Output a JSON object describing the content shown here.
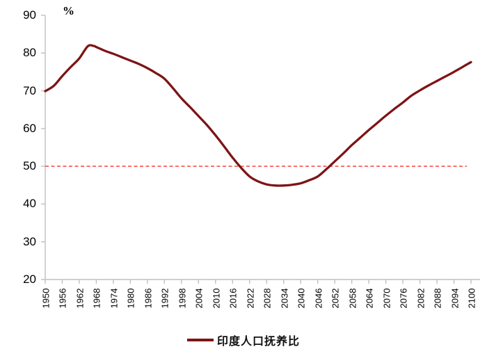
{
  "chart": {
    "unit_label": "%",
    "colors": {
      "series_line": "#7d1416",
      "reference_line": "#fb5b5b",
      "axis": "#bfbfbf",
      "text": "#000000"
    }
  },
  "chart_data": {
    "type": "line",
    "title": "",
    "xlabel": "",
    "ylabel": "%",
    "ylim": [
      20,
      90
    ],
    "yticks": [
      20,
      30,
      40,
      50,
      60,
      70,
      80,
      90
    ],
    "grid": false,
    "legend_position": "bottom",
    "categories": [
      "1950",
      "1956",
      "1962",
      "1968",
      "1974",
      "1980",
      "1986",
      "1992",
      "1998",
      "2004",
      "2010",
      "2016",
      "2022",
      "2028",
      "2034",
      "2040",
      "2046",
      "2052",
      "2058",
      "2064",
      "2070",
      "2076",
      "2082",
      "2088",
      "2094",
      "2100"
    ],
    "series": [
      {
        "name": "印度人口抚养比",
        "color": "#7d1416",
        "values": [
          69.9,
          73.9,
          78.6,
          81.6,
          79.8,
          78.0,
          76.0,
          73.2,
          68.0,
          63.3,
          58.2,
          52.3,
          47.3,
          45.2,
          44.9,
          45.5,
          47.3,
          51.3,
          55.6,
          59.6,
          63.4,
          66.9,
          70.1,
          72.6,
          75.0,
          77.6
        ]
      }
    ],
    "curve_points": [
      [
        1950,
        69.9
      ],
      [
        1953,
        71.3
      ],
      [
        1956,
        73.9
      ],
      [
        1959,
        76.3
      ],
      [
        1962,
        78.6
      ],
      [
        1965,
        81.8
      ],
      [
        1967,
        81.9
      ],
      [
        1968,
        81.6
      ],
      [
        1971,
        80.6
      ],
      [
        1974,
        79.8
      ],
      [
        1977,
        78.9
      ],
      [
        1980,
        78.0
      ],
      [
        1983,
        77.1
      ],
      [
        1986,
        76.0
      ],
      [
        1989,
        74.7
      ],
      [
        1992,
        73.2
      ],
      [
        1995,
        70.7
      ],
      [
        1998,
        68.0
      ],
      [
        2001,
        65.7
      ],
      [
        2004,
        63.3
      ],
      [
        2007,
        60.9
      ],
      [
        2010,
        58.2
      ],
      [
        2013,
        55.3
      ],
      [
        2016,
        52.3
      ],
      [
        2019,
        49.6
      ],
      [
        2022,
        47.3
      ],
      [
        2025,
        46.0
      ],
      [
        2028,
        45.2
      ],
      [
        2031,
        44.9
      ],
      [
        2034,
        44.9
      ],
      [
        2037,
        45.1
      ],
      [
        2040,
        45.5
      ],
      [
        2043,
        46.3
      ],
      [
        2046,
        47.3
      ],
      [
        2049,
        49.2
      ],
      [
        2052,
        51.3
      ],
      [
        2055,
        53.4
      ],
      [
        2058,
        55.6
      ],
      [
        2061,
        57.6
      ],
      [
        2064,
        59.6
      ],
      [
        2067,
        61.5
      ],
      [
        2070,
        63.4
      ],
      [
        2073,
        65.2
      ],
      [
        2076,
        66.9
      ],
      [
        2079,
        68.7
      ],
      [
        2082,
        70.1
      ],
      [
        2085,
        71.4
      ],
      [
        2088,
        72.6
      ],
      [
        2091,
        73.8
      ],
      [
        2094,
        75.0
      ],
      [
        2097,
        76.3
      ],
      [
        2100,
        77.6
      ]
    ],
    "reference_line": {
      "value": 50,
      "style": "dashed",
      "color": "#fb5b5b"
    }
  }
}
